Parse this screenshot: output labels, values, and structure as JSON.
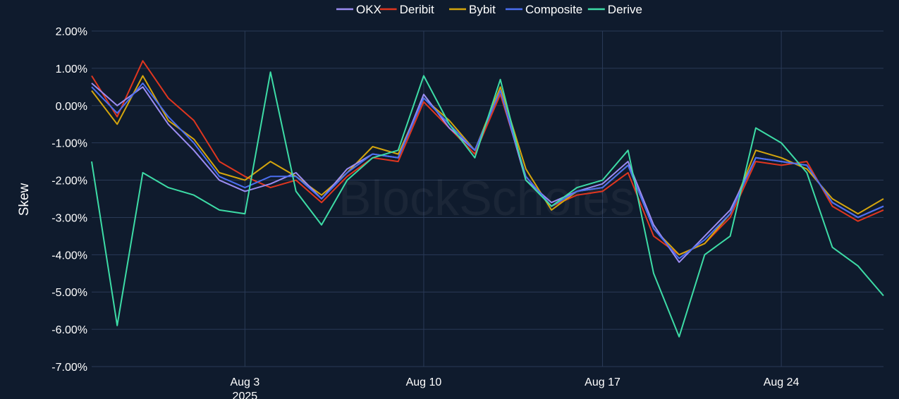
{
  "chart_data": {
    "type": "line",
    "title": "",
    "xlabel": "",
    "ylabel": "Skew",
    "watermark": "BlockScholes",
    "x_range": [
      "2025-07-28",
      "2025-08-28"
    ],
    "ylim": [
      -7.0,
      2.0
    ],
    "y_ticks": [
      "2.00%",
      "1.00%",
      "0.00%",
      "-1.00%",
      "-2.00%",
      "-3.00%",
      "-4.00%",
      "-5.00%",
      "-6.00%",
      "-7.00%"
    ],
    "x_ticks": [
      {
        "date": "2025-08-03",
        "label": "Aug 3",
        "sublabel": "2025"
      },
      {
        "date": "2025-08-10",
        "label": "Aug 10",
        "sublabel": ""
      },
      {
        "date": "2025-08-17",
        "label": "Aug 17",
        "sublabel": ""
      },
      {
        "date": "2025-08-24",
        "label": "Aug 24",
        "sublabel": ""
      }
    ],
    "grid": true,
    "legend_position": "top-center",
    "series": [
      {
        "name": "OKX",
        "color": "#9b8cf2",
        "points": [
          [
            "2025-07-28",
            0.6
          ],
          [
            "2025-07-29",
            0.0
          ],
          [
            "2025-07-30",
            0.5
          ],
          [
            "2025-07-31",
            -0.5
          ],
          [
            "2025-08-01",
            -1.2
          ],
          [
            "2025-08-02",
            -2.0
          ],
          [
            "2025-08-03",
            -2.3
          ],
          [
            "2025-08-04",
            -2.1
          ],
          [
            "2025-08-05",
            -1.8
          ],
          [
            "2025-08-06",
            -2.5
          ],
          [
            "2025-08-07",
            -1.7
          ],
          [
            "2025-08-08",
            -1.3
          ],
          [
            "2025-08-09",
            -1.4
          ],
          [
            "2025-08-10",
            0.3
          ],
          [
            "2025-08-11",
            -0.6
          ],
          [
            "2025-08-12",
            -1.2
          ],
          [
            "2025-08-13",
            0.4
          ],
          [
            "2025-08-14",
            -2.0
          ],
          [
            "2025-08-15",
            -2.6
          ],
          [
            "2025-08-16",
            -2.3
          ],
          [
            "2025-08-17",
            -2.1
          ],
          [
            "2025-08-18",
            -1.5
          ],
          [
            "2025-08-19",
            -3.2
          ],
          [
            "2025-08-20",
            -4.2
          ],
          [
            "2025-08-21",
            -3.5
          ],
          [
            "2025-08-22",
            -2.8
          ],
          [
            "2025-08-23",
            -1.4
          ],
          [
            "2025-08-24",
            -1.5
          ],
          [
            "2025-08-25",
            -1.6
          ],
          [
            "2025-08-26",
            -2.6
          ],
          [
            "2025-08-27",
            -3.0
          ],
          [
            "2025-08-28",
            -2.7
          ]
        ]
      },
      {
        "name": "Deribit",
        "color": "#e0361f",
        "points": [
          [
            "2025-07-28",
            0.8
          ],
          [
            "2025-07-29",
            -0.3
          ],
          [
            "2025-07-30",
            1.2
          ],
          [
            "2025-07-31",
            0.2
          ],
          [
            "2025-08-01",
            -0.4
          ],
          [
            "2025-08-02",
            -1.5
          ],
          [
            "2025-08-03",
            -1.9
          ],
          [
            "2025-08-04",
            -2.2
          ],
          [
            "2025-08-05",
            -2.0
          ],
          [
            "2025-08-06",
            -2.6
          ],
          [
            "2025-08-07",
            -1.9
          ],
          [
            "2025-08-08",
            -1.4
          ],
          [
            "2025-08-09",
            -1.5
          ],
          [
            "2025-08-10",
            0.1
          ],
          [
            "2025-08-11",
            -0.6
          ],
          [
            "2025-08-12",
            -1.3
          ],
          [
            "2025-08-13",
            0.3
          ],
          [
            "2025-08-14",
            -1.9
          ],
          [
            "2025-08-15",
            -2.7
          ],
          [
            "2025-08-16",
            -2.4
          ],
          [
            "2025-08-17",
            -2.3
          ],
          [
            "2025-08-18",
            -1.8
          ],
          [
            "2025-08-19",
            -3.5
          ],
          [
            "2025-08-20",
            -4.0
          ],
          [
            "2025-08-21",
            -3.7
          ],
          [
            "2025-08-22",
            -3.0
          ],
          [
            "2025-08-23",
            -1.5
          ],
          [
            "2025-08-24",
            -1.6
          ],
          [
            "2025-08-25",
            -1.5
          ],
          [
            "2025-08-26",
            -2.7
          ],
          [
            "2025-08-27",
            -3.1
          ],
          [
            "2025-08-28",
            -2.8
          ]
        ]
      },
      {
        "name": "Bybit",
        "color": "#d4a50d",
        "points": [
          [
            "2025-07-28",
            0.4
          ],
          [
            "2025-07-29",
            -0.5
          ],
          [
            "2025-07-30",
            0.8
          ],
          [
            "2025-07-31",
            -0.4
          ],
          [
            "2025-08-01",
            -0.9
          ],
          [
            "2025-08-02",
            -1.8
          ],
          [
            "2025-08-03",
            -2.0
          ],
          [
            "2025-08-04",
            -1.5
          ],
          [
            "2025-08-05",
            -1.9
          ],
          [
            "2025-08-06",
            -2.4
          ],
          [
            "2025-08-07",
            -1.8
          ],
          [
            "2025-08-08",
            -1.1
          ],
          [
            "2025-08-09",
            -1.3
          ],
          [
            "2025-08-10",
            0.2
          ],
          [
            "2025-08-11",
            -0.4
          ],
          [
            "2025-08-12",
            -1.2
          ],
          [
            "2025-08-13",
            0.5
          ],
          [
            "2025-08-14",
            -1.7
          ],
          [
            "2025-08-15",
            -2.8
          ],
          [
            "2025-08-16",
            -2.3
          ],
          [
            "2025-08-17",
            -2.2
          ],
          [
            "2025-08-18",
            -1.6
          ],
          [
            "2025-08-19",
            -3.3
          ],
          [
            "2025-08-20",
            -4.0
          ],
          [
            "2025-08-21",
            -3.7
          ],
          [
            "2025-08-22",
            -2.9
          ],
          [
            "2025-08-23",
            -1.2
          ],
          [
            "2025-08-24",
            -1.4
          ],
          [
            "2025-08-25",
            -1.7
          ],
          [
            "2025-08-26",
            -2.5
          ],
          [
            "2025-08-27",
            -2.9
          ],
          [
            "2025-08-28",
            -2.5
          ]
        ]
      },
      {
        "name": "Composite",
        "color": "#4b6ef0",
        "points": [
          [
            "2025-07-28",
            0.5
          ],
          [
            "2025-07-29",
            -0.2
          ],
          [
            "2025-07-30",
            0.6
          ],
          [
            "2025-07-31",
            -0.3
          ],
          [
            "2025-08-01",
            -1.0
          ],
          [
            "2025-08-02",
            -1.9
          ],
          [
            "2025-08-03",
            -2.2
          ],
          [
            "2025-08-04",
            -1.9
          ],
          [
            "2025-08-05",
            -1.9
          ],
          [
            "2025-08-06",
            -2.5
          ],
          [
            "2025-08-07",
            -1.8
          ],
          [
            "2025-08-08",
            -1.3
          ],
          [
            "2025-08-09",
            -1.4
          ],
          [
            "2025-08-10",
            0.2
          ],
          [
            "2025-08-11",
            -0.5
          ],
          [
            "2025-08-12",
            -1.2
          ],
          [
            "2025-08-13",
            0.4
          ],
          [
            "2025-08-14",
            -1.9
          ],
          [
            "2025-08-15",
            -2.7
          ],
          [
            "2025-08-16",
            -2.3
          ],
          [
            "2025-08-17",
            -2.2
          ],
          [
            "2025-08-18",
            -1.6
          ],
          [
            "2025-08-19",
            -3.3
          ],
          [
            "2025-08-20",
            -4.1
          ],
          [
            "2025-08-21",
            -3.6
          ],
          [
            "2025-08-22",
            -2.9
          ],
          [
            "2025-08-23",
            -1.4
          ],
          [
            "2025-08-24",
            -1.5
          ],
          [
            "2025-08-25",
            -1.6
          ],
          [
            "2025-08-26",
            -2.6
          ],
          [
            "2025-08-27",
            -3.0
          ],
          [
            "2025-08-28",
            -2.7
          ]
        ]
      },
      {
        "name": "Derive",
        "color": "#3ddca6",
        "points": [
          [
            "2025-07-28",
            -1.5
          ],
          [
            "2025-07-29",
            -5.9
          ],
          [
            "2025-07-30",
            -1.8
          ],
          [
            "2025-07-31",
            -2.2
          ],
          [
            "2025-08-01",
            -2.4
          ],
          [
            "2025-08-02",
            -2.8
          ],
          [
            "2025-08-03",
            -2.9
          ],
          [
            "2025-08-04",
            0.9
          ],
          [
            "2025-08-05",
            -2.3
          ],
          [
            "2025-08-06",
            -3.2
          ],
          [
            "2025-08-07",
            -2.0
          ],
          [
            "2025-08-08",
            -1.4
          ],
          [
            "2025-08-09",
            -1.2
          ],
          [
            "2025-08-10",
            0.8
          ],
          [
            "2025-08-11",
            -0.5
          ],
          [
            "2025-08-12",
            -1.4
          ],
          [
            "2025-08-13",
            0.7
          ],
          [
            "2025-08-14",
            -2.0
          ],
          [
            "2025-08-15",
            -2.7
          ],
          [
            "2025-08-16",
            -2.2
          ],
          [
            "2025-08-17",
            -2.0
          ],
          [
            "2025-08-18",
            -1.2
          ],
          [
            "2025-08-19",
            -4.5
          ],
          [
            "2025-08-20",
            -6.2
          ],
          [
            "2025-08-21",
            -4.0
          ],
          [
            "2025-08-22",
            -3.5
          ],
          [
            "2025-08-23",
            -0.6
          ],
          [
            "2025-08-24",
            -1.0
          ],
          [
            "2025-08-25",
            -1.8
          ],
          [
            "2025-08-26",
            -3.8
          ],
          [
            "2025-08-27",
            -4.3
          ],
          [
            "2025-08-28",
            -5.1
          ]
        ]
      }
    ]
  }
}
